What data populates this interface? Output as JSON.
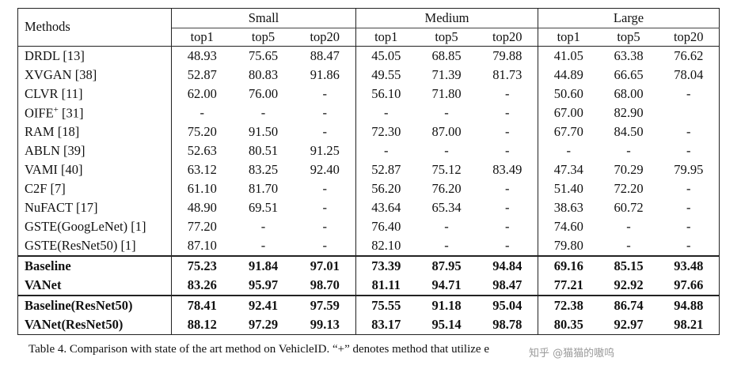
{
  "table": {
    "methods_header": "Methods",
    "groups": [
      "Small",
      "Medium",
      "Large"
    ],
    "subheaders": [
      "top1",
      "top5",
      "top20"
    ],
    "rows": [
      {
        "method": "DRDL [13]",
        "values": [
          "48.93",
          "75.65",
          "88.47",
          "45.05",
          "68.85",
          "79.88",
          "41.05",
          "63.38",
          "76.62"
        ]
      },
      {
        "method": "XVGAN [38]",
        "values": [
          "52.87",
          "80.83",
          "91.86",
          "49.55",
          "71.39",
          "81.73",
          "44.89",
          "66.65",
          "78.04"
        ]
      },
      {
        "method": "CLVR [11]",
        "values": [
          "62.00",
          "76.00",
          "-",
          "56.10",
          "71.80",
          "-",
          "50.60",
          "68.00",
          "-"
        ]
      },
      {
        "method": "OIFE+ [31]",
        "values": [
          "-",
          "-",
          "-",
          "-",
          "-",
          "-",
          "67.00",
          "82.90",
          ""
        ]
      },
      {
        "method": "RAM [18]",
        "values": [
          "75.20",
          "91.50",
          "-",
          "72.30",
          "87.00",
          "-",
          "67.70",
          "84.50",
          "-"
        ]
      },
      {
        "method": "ABLN [39]",
        "values": [
          "52.63",
          "80.51",
          "91.25",
          "-",
          "-",
          "-",
          "-",
          "-",
          "-"
        ]
      },
      {
        "method": "VAMI [40]",
        "values": [
          "63.12",
          "83.25",
          "92.40",
          "52.87",
          "75.12",
          "83.49",
          "47.34",
          "70.29",
          "79.95"
        ]
      },
      {
        "method": "C2F [7]",
        "values": [
          "61.10",
          "81.70",
          "-",
          "56.20",
          "76.20",
          "-",
          "51.40",
          "72.20",
          "-"
        ]
      },
      {
        "method": "NuFACT [17]",
        "values": [
          "48.90",
          "69.51",
          "-",
          "43.64",
          "65.34",
          "-",
          "38.63",
          "60.72",
          "-"
        ]
      },
      {
        "method": "GSTE(GoogLeNet) [1]",
        "values": [
          "77.20",
          "-",
          "-",
          "76.40",
          "-",
          "-",
          "74.60",
          "-",
          "-"
        ]
      },
      {
        "method": "GSTE(ResNet50) [1]",
        "values": [
          "87.10",
          "-",
          "-",
          "82.10",
          "-",
          "-",
          "79.80",
          "-",
          "-"
        ]
      }
    ],
    "mid_rows": [
      {
        "method": "Baseline",
        "values": [
          "75.23",
          "91.84",
          "97.01",
          "73.39",
          "87.95",
          "94.84",
          "69.16",
          "85.15",
          "93.48"
        ]
      },
      {
        "method": "VANet",
        "values": [
          "83.26",
          "95.97",
          "98.70",
          "81.11",
          "94.71",
          "98.47",
          "77.21",
          "92.92",
          "97.66"
        ]
      }
    ],
    "final_rows": [
      {
        "method": "Baseline(ResNet50)",
        "values": [
          "78.41",
          "92.41",
          "97.59",
          "75.55",
          "91.18",
          "95.04",
          "72.38",
          "86.74",
          "94.88"
        ]
      },
      {
        "method": "VANet(ResNet50)",
        "values": [
          "88.12",
          "97.29",
          "99.13",
          "83.17",
          "95.14",
          "98.78",
          "80.35",
          "92.97",
          "98.21"
        ]
      }
    ]
  },
  "caption": "Table 4. Comparison with state of the art method on VehicleID. “+” denotes method that utilize e",
  "watermark": "知乎 @猫猫的嗷呜"
}
